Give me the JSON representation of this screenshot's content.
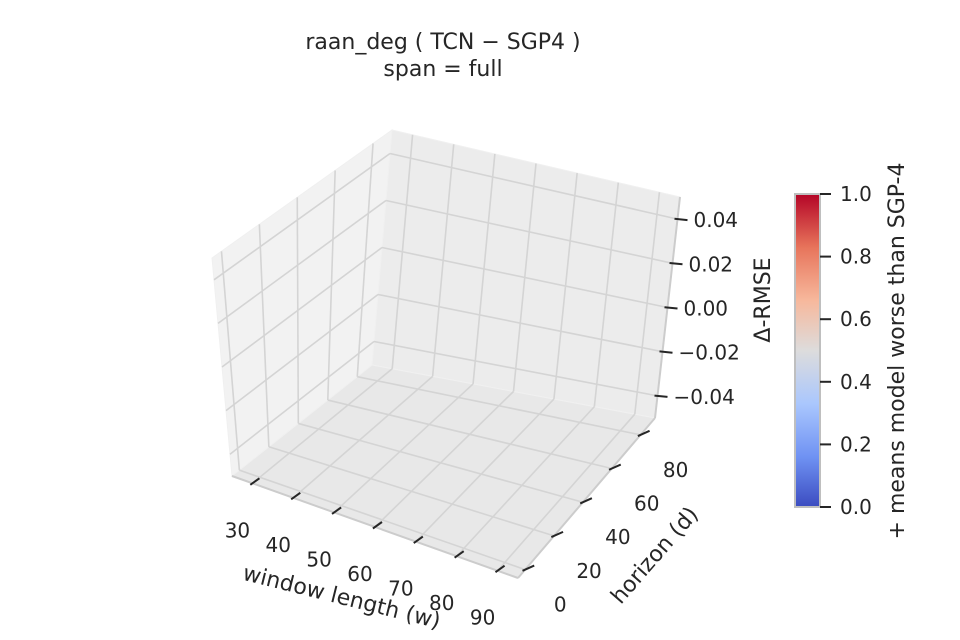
{
  "chart_data": {
    "type": "surface3d",
    "title": "raan_deg  ( TCN − SGP4 )",
    "subtitle": "span = full",
    "xlabel": "window length (w)",
    "ylabel": "horizon (d)",
    "zlabel": "Δ-RMSE",
    "x_ticks": [
      "30",
      "40",
      "50",
      "60",
      "70",
      "80",
      "90"
    ],
    "y_ticks": [
      "0",
      "20",
      "40",
      "60",
      "80"
    ],
    "z_ticks": [
      "0.04",
      "0.02",
      "0.00",
      "−0.02",
      "−0.04"
    ],
    "zlim": [
      -0.05,
      0.05
    ],
    "grid": true,
    "series": [],
    "colorbar": {
      "label": "+ means model worse than SGP-4",
      "ticks": [
        "0.0",
        "0.2",
        "0.4",
        "0.6",
        "0.8",
        "1.0"
      ],
      "range": [
        0.0,
        1.0
      ],
      "colormap": "coolwarm",
      "colors": [
        "#3b4cc0",
        "#6f92f3",
        "#aac7fd",
        "#dddcdc",
        "#f7b89c",
        "#e7745b",
        "#b40426"
      ]
    }
  }
}
